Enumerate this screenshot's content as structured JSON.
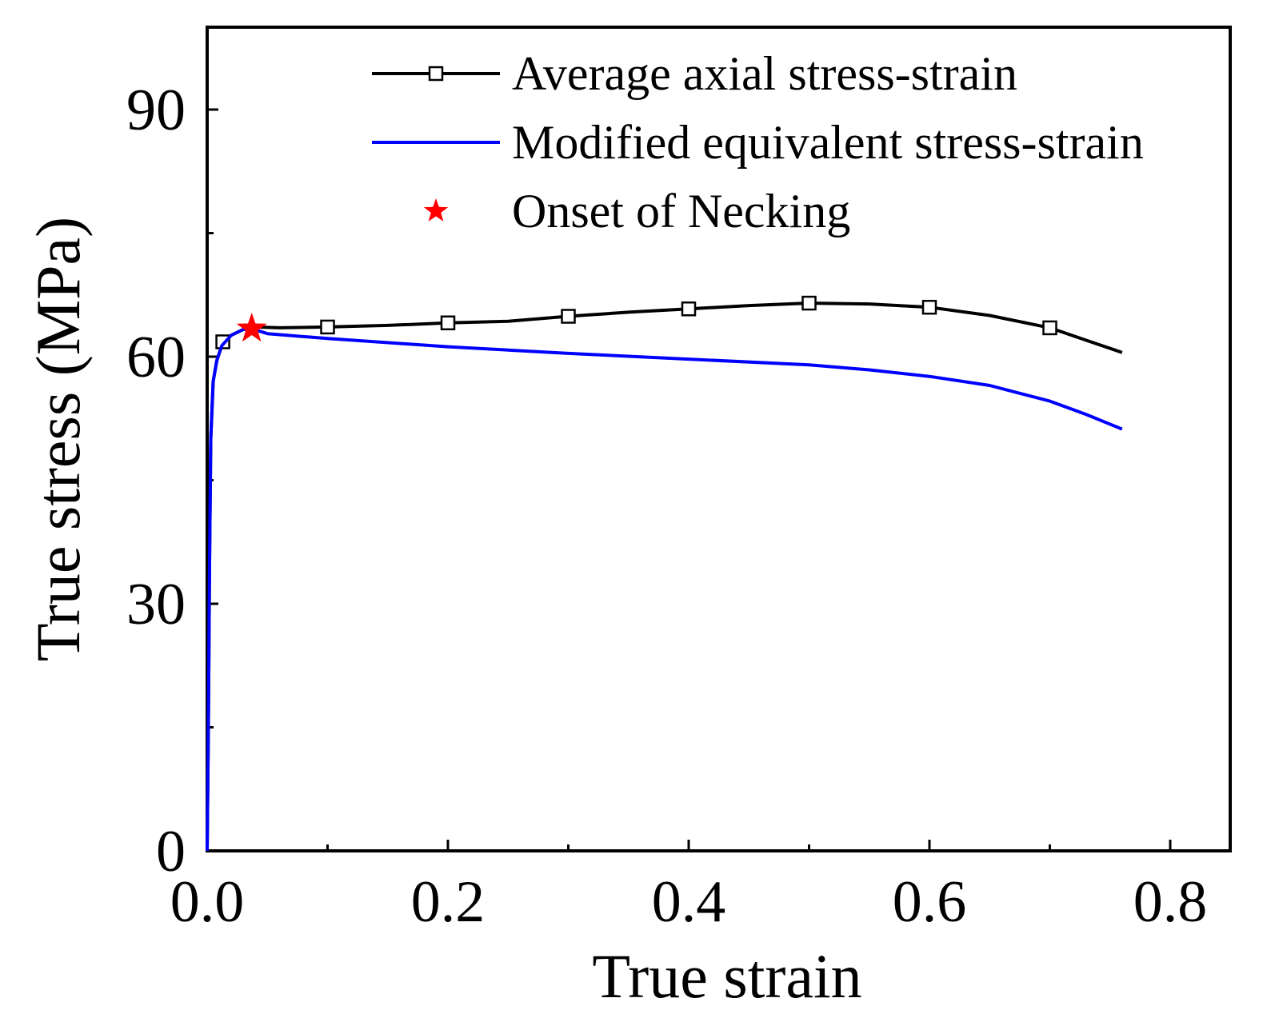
{
  "chart_data": {
    "type": "line",
    "xlabel": "True strain",
    "ylabel": "True stress (MPa)",
    "xlim": [
      0,
      0.85
    ],
    "ylim": [
      0,
      100
    ],
    "xticks": [
      {
        "value": 0.0,
        "label": "0.0"
      },
      {
        "value": 0.2,
        "label": "0.2"
      },
      {
        "value": 0.4,
        "label": "0.4"
      },
      {
        "value": 0.6,
        "label": "0.6"
      },
      {
        "value": 0.8,
        "label": "0.8"
      }
    ],
    "yticks": [
      {
        "value": 0,
        "label": "0"
      },
      {
        "value": 30,
        "label": "30"
      },
      {
        "value": 60,
        "label": "60"
      },
      {
        "value": 90,
        "label": "90"
      }
    ],
    "xminor": [
      0.1,
      0.3,
      0.5,
      0.7
    ],
    "yminor": [
      15,
      45,
      75
    ],
    "legend_position": "top-right",
    "series": [
      {
        "name": "Average axial stress-strain",
        "color": "#000000",
        "marker": "square",
        "x": [
          0.0,
          0.001,
          0.002,
          0.003,
          0.005,
          0.008,
          0.012,
          0.02,
          0.03,
          0.04,
          0.06,
          0.1,
          0.15,
          0.2,
          0.25,
          0.3,
          0.35,
          0.4,
          0.45,
          0.5,
          0.55,
          0.6,
          0.65,
          0.7,
          0.73,
          0.76
        ],
        "y": [
          0,
          15,
          35,
          50,
          57,
          59.5,
          61.3,
          62.6,
          63.3,
          63.6,
          63.5,
          63.6,
          63.8,
          64.1,
          64.3,
          64.9,
          65.4,
          65.8,
          66.2,
          66.5,
          66.4,
          66.0,
          65.0,
          63.5,
          62.0,
          60.5
        ],
        "marker_x": [
          0.013,
          0.1,
          0.2,
          0.3,
          0.4,
          0.5,
          0.6,
          0.7
        ],
        "marker_y": [
          61.8,
          63.6,
          64.1,
          64.9,
          65.8,
          66.5,
          66.0,
          63.5
        ]
      },
      {
        "name": "Modified equivalent stress-strain",
        "color": "#0000ff",
        "marker": "none",
        "x": [
          0.0,
          0.001,
          0.002,
          0.003,
          0.005,
          0.008,
          0.012,
          0.02,
          0.03,
          0.037,
          0.05,
          0.1,
          0.2,
          0.3,
          0.4,
          0.5,
          0.55,
          0.6,
          0.65,
          0.7,
          0.73,
          0.76
        ],
        "y": [
          0,
          15,
          35,
          50,
          57,
          59.5,
          61.3,
          62.6,
          63.3,
          63.4,
          62.8,
          62.2,
          61.2,
          60.4,
          59.7,
          59.0,
          58.4,
          57.6,
          56.5,
          54.6,
          53.0,
          51.2
        ]
      }
    ],
    "markers": [
      {
        "name": "Onset of Necking",
        "color": "#ff0000",
        "symbol": "star",
        "x": 0.037,
        "y": 63.4
      }
    ]
  }
}
